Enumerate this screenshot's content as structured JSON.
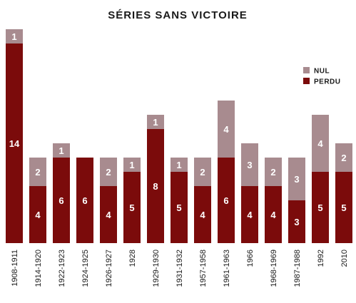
{
  "chart_data": {
    "type": "bar",
    "stacked": true,
    "title": "SÉRIES SANS VICTOIRE",
    "categories": [
      "1908-1911",
      "1914-1920",
      "1922-1923",
      "1924-1925",
      "1926-1927",
      "1928",
      "1929-1930",
      "1931-1932",
      "1957-1958",
      "1961-1963",
      "1966",
      "1968-1969",
      "1987-1988",
      "1992",
      "2010"
    ],
    "series": [
      {
        "name": "PERDU",
        "color": "#7b0b0b",
        "values": [
          14,
          4,
          6,
          6,
          4,
          5,
          8,
          5,
          4,
          6,
          4,
          4,
          3,
          5,
          5
        ]
      },
      {
        "name": "NUL",
        "color": "#a88b8f",
        "values": [
          1,
          2,
          1,
          null,
          2,
          1,
          1,
          1,
          2,
          4,
          3,
          2,
          3,
          4,
          2
        ]
      }
    ],
    "legend": {
      "placement": "top-right",
      "order": [
        "NUL",
        "PERDU"
      ]
    },
    "ylim": [
      0,
      15
    ],
    "grid": false,
    "xlabel": "",
    "ylabel": ""
  }
}
